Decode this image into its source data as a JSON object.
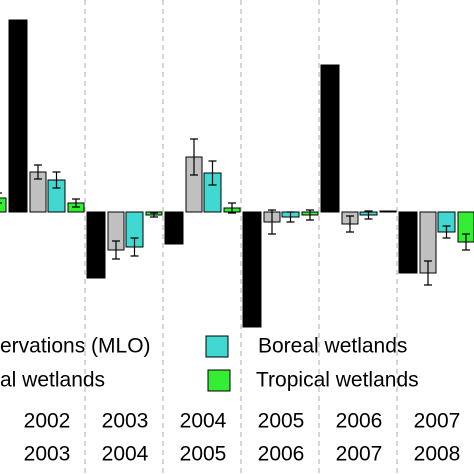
{
  "chart_data": {
    "type": "bar",
    "categories": [
      null,
      [
        "2002",
        "2003"
      ],
      [
        "2003",
        "2004"
      ],
      [
        "2004",
        "2005"
      ],
      [
        "2005",
        "2006"
      ],
      [
        "2006",
        "2007"
      ],
      [
        "2007",
        "2008"
      ]
    ],
    "series": [
      {
        "name": "ervations (MLO)",
        "color": "#000000",
        "values": [
          null,
          19.2,
          -6.6,
          -3.2,
          -11.5,
          14.7,
          -6.1
        ]
      },
      {
        "name": "al wetlands",
        "color": "#c0c0c0",
        "values": [
          null,
          4.0,
          -3.8,
          5.5,
          -1.0,
          -1.2,
          -6.1
        ],
        "errors": [
          null,
          0.7,
          0.9,
          1.8,
          1.2,
          0.8,
          1.2
        ]
      },
      {
        "name": "Boreal wetlands",
        "color": "#40d8d0",
        "values": [
          null,
          3.2,
          -3.5,
          3.9,
          -0.5,
          -0.3,
          -2.0
        ],
        "errors": [
          null,
          0.8,
          0.9,
          1.2,
          0.5,
          0.4,
          0.6
        ]
      },
      {
        "name": "Tropical wetlands",
        "color": "#33ee33",
        "values": [
          1.4,
          0.9,
          -0.3,
          0.4,
          -0.3,
          0.1,
          -3.0
        ],
        "errors": [
          0.5,
          0.4,
          0.2,
          0.5,
          0.5,
          null,
          0.8
        ]
      }
    ],
    "ylim": [
      -11.8,
      21.2
    ]
  }
}
